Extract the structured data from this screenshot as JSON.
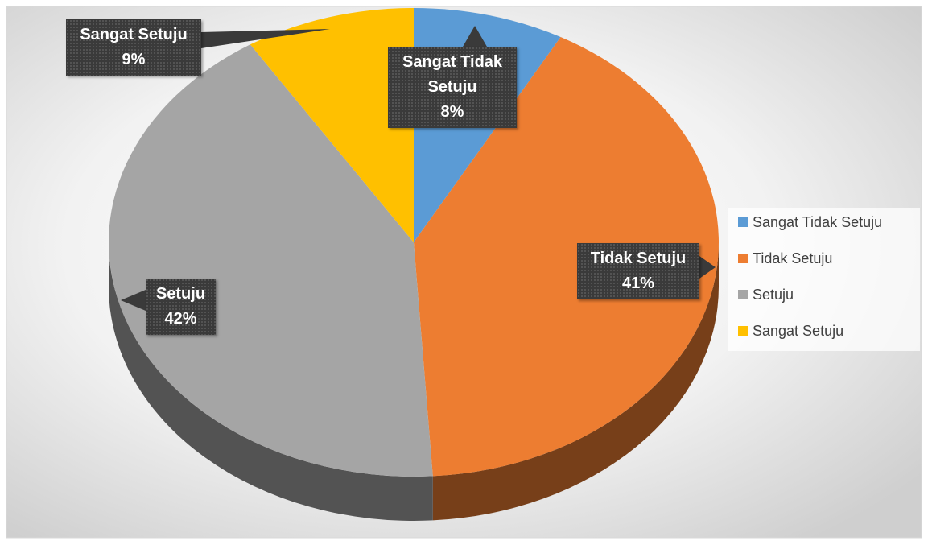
{
  "chart_data": {
    "type": "pie",
    "categories": [
      "Sangat Tidak Setuju",
      "Tidak Setuju",
      "Setuju",
      "Sangat Setuju"
    ],
    "values": [
      8,
      41,
      42,
      9
    ],
    "value_labels": [
      "8%",
      "41%",
      "42%",
      "9%"
    ],
    "colors": [
      "#5b9bd5",
      "#ed7d31",
      "#a5a5a5",
      "#ffc000"
    ],
    "legend": "right"
  }
}
